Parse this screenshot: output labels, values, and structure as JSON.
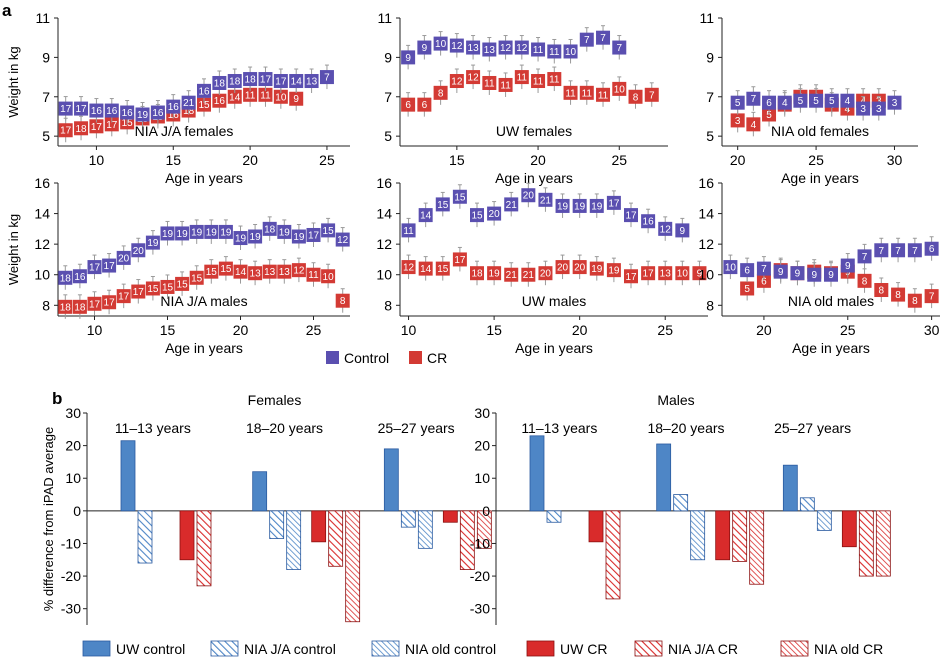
{
  "panel_letters": {
    "a": "a",
    "b": "b"
  },
  "colors": {
    "control": "#5a4fb0",
    "cr": "#d33a34",
    "uw_control_bar": "#4e86c6",
    "uw_cr_bar": "#d92b2b",
    "hatch_control": "#4e86c6",
    "hatch_cr": "#d92b2b"
  },
  "legend_a": {
    "control": "Control",
    "cr": "CR"
  },
  "chart_data": [
    {
      "type": "scatter",
      "id": "nia_ja_females",
      "title": "NIA J/A females",
      "xlabel": "Age in years",
      "ylabel": "Weight in kg",
      "xlim": [
        7.5,
        26.5
      ],
      "ylim": [
        4.5,
        11
      ],
      "xticks": [
        10,
        15,
        20,
        25
      ],
      "yticks": [
        5,
        7,
        9,
        11
      ],
      "series": [
        {
          "name": "Control",
          "x": [
            8,
            9,
            10,
            11,
            12,
            13,
            14,
            15,
            16,
            17,
            18,
            19,
            20,
            21,
            22,
            23,
            24,
            25
          ],
          "y": [
            6.4,
            6.4,
            6.3,
            6.3,
            6.2,
            6.1,
            6.2,
            6.5,
            6.7,
            7.3,
            7.7,
            7.8,
            7.9,
            7.9,
            7.8,
            7.8,
            7.8,
            8.0
          ],
          "labels": [
            "17",
            "17",
            "16",
            "16",
            "16",
            "19",
            "16",
            "16",
            "21",
            "16",
            "18",
            "18",
            "18",
            "17",
            "17",
            "14",
            "13",
            "7"
          ]
        },
        {
          "name": "CR",
          "x": [
            8,
            9,
            10,
            11,
            12,
            13,
            14,
            15,
            16,
            17,
            18,
            19,
            20,
            21,
            22,
            23
          ],
          "y": [
            5.3,
            5.4,
            5.5,
            5.6,
            5.7,
            5.9,
            6.0,
            6.1,
            6.3,
            6.6,
            6.8,
            7.0,
            7.1,
            7.1,
            7.0,
            6.9
          ],
          "labels": [
            "17",
            "18",
            "17",
            "17",
            "15",
            "13",
            "15",
            "16",
            "18",
            "15",
            "16",
            "14",
            "11",
            "11",
            "10",
            "9"
          ]
        }
      ]
    },
    {
      "type": "scatter",
      "id": "uw_females",
      "title": "UW females",
      "xlabel": "Age in years",
      "ylabel": "",
      "xlim": [
        11.5,
        28
      ],
      "ylim": [
        4.5,
        11
      ],
      "xticks": [
        15,
        20,
        25
      ],
      "yticks": [
        5,
        7,
        9,
        11
      ],
      "series": [
        {
          "name": "Control",
          "x": [
            12,
            13,
            14,
            15,
            16,
            17,
            18,
            19,
            20,
            21,
            22,
            23,
            24,
            25
          ],
          "y": [
            9.0,
            9.5,
            9.7,
            9.6,
            9.5,
            9.4,
            9.5,
            9.5,
            9.4,
            9.3,
            9.3,
            9.9,
            10.0,
            9.5
          ],
          "labels": [
            "9",
            "9",
            "10",
            "12",
            "13",
            "13",
            "12",
            "12",
            "11",
            "11",
            "10",
            "7",
            "7",
            "7"
          ]
        },
        {
          "name": "CR",
          "x": [
            12,
            13,
            14,
            15,
            16,
            17,
            18,
            19,
            20,
            21,
            22,
            23,
            24,
            25,
            26,
            27
          ],
          "y": [
            6.6,
            6.6,
            7.2,
            7.8,
            8.0,
            7.7,
            7.6,
            8.0,
            7.8,
            7.9,
            7.2,
            7.2,
            7.1,
            7.4,
            7.0,
            7.1
          ],
          "labels": [
            "6",
            "6",
            "8",
            "12",
            "12",
            "11",
            "11",
            "11",
            "11",
            "11",
            "11",
            "11",
            "11",
            "10",
            "8",
            "7"
          ]
        }
      ]
    },
    {
      "type": "scatter",
      "id": "nia_old_females",
      "title": "NIA old females",
      "xlabel": "Age in years",
      "ylabel": "",
      "xlim": [
        19,
        31.5
      ],
      "ylim": [
        4.5,
        11
      ],
      "xticks": [
        20,
        25,
        30
      ],
      "yticks": [
        5,
        7,
        9,
        11
      ],
      "series": [
        {
          "name": "Control",
          "x": [
            20,
            21,
            22,
            23,
            24,
            25,
            26,
            27,
            28,
            29,
            30
          ],
          "y": [
            6.7,
            6.9,
            6.7,
            6.7,
            6.8,
            6.8,
            6.8,
            6.8,
            6.4,
            6.4,
            6.7
          ],
          "labels": [
            "5",
            "7",
            "6",
            "4",
            "5",
            "5",
            "5",
            "4",
            "3",
            "3",
            "3"
          ]
        },
        {
          "name": "CR",
          "x": [
            20,
            21,
            22,
            23,
            24,
            25,
            26,
            27,
            28,
            29
          ],
          "y": [
            5.8,
            5.6,
            6.1,
            6.6,
            7.0,
            7.0,
            6.6,
            6.4,
            6.8,
            6.8
          ],
          "labels": [
            "3",
            "4",
            "5",
            "5",
            "4",
            "4",
            "4",
            "4",
            "4",
            "3"
          ]
        }
      ]
    },
    {
      "type": "scatter",
      "id": "nia_ja_males",
      "title": "NIA J/A males",
      "xlabel": "Age in years",
      "ylabel": "Weight in kg",
      "xlim": [
        7.5,
        27.5
      ],
      "ylim": [
        7.3,
        16
      ],
      "xticks": [
        10,
        15,
        20,
        25
      ],
      "yticks": [
        8,
        10,
        12,
        14,
        16
      ],
      "series": [
        {
          "name": "Control",
          "x": [
            8,
            9,
            10,
            11,
            12,
            13,
            14,
            15,
            16,
            17,
            18,
            19,
            20,
            21,
            22,
            23,
            24,
            25,
            26,
            27
          ],
          "y": [
            9.8,
            9.9,
            10.5,
            10.6,
            11.1,
            11.6,
            12.1,
            12.7,
            12.7,
            12.8,
            12.8,
            12.8,
            12.4,
            12.5,
            13.0,
            12.8,
            12.5,
            12.6,
            12.9,
            12.3
          ],
          "labels": [
            "18",
            "16",
            "17",
            "17",
            "20",
            "20",
            "19",
            "19",
            "19",
            "19",
            "19",
            "19",
            "19",
            "19",
            "18",
            "19",
            "19",
            "17",
            "15",
            "12"
          ]
        },
        {
          "name": "CR",
          "x": [
            8,
            9,
            10,
            11,
            12,
            13,
            14,
            15,
            16,
            17,
            18,
            19,
            20,
            21,
            22,
            23,
            24,
            25,
            26,
            27
          ],
          "y": [
            7.9,
            7.9,
            8.1,
            8.2,
            8.6,
            8.9,
            9.1,
            9.2,
            9.4,
            9.8,
            10.2,
            10.4,
            10.2,
            10.1,
            10.2,
            10.2,
            10.3,
            10.0,
            9.9,
            8.3
          ],
          "labels": [
            "18",
            "18",
            "17",
            "17",
            "17",
            "17",
            "15",
            "15",
            "15",
            "15",
            "15",
            "15",
            "14",
            "13",
            "13",
            "13",
            "12",
            "11",
            "10",
            "8"
          ]
        }
      ]
    },
    {
      "type": "scatter",
      "id": "uw_males",
      "title": "UW males",
      "xlabel": "Age in years",
      "ylabel": "",
      "xlim": [
        9.5,
        27.5
      ],
      "ylim": [
        7.3,
        16
      ],
      "xticks": [
        10,
        15,
        20,
        25
      ],
      "yticks": [
        8,
        10,
        12,
        14,
        16
      ],
      "series": [
        {
          "name": "Control",
          "x": [
            10,
            11,
            12,
            13,
            14,
            15,
            16,
            17,
            18,
            19,
            20,
            21,
            22,
            23,
            24,
            25,
            26
          ],
          "y": [
            12.9,
            13.9,
            14.6,
            15.1,
            13.9,
            14.0,
            14.6,
            15.2,
            14.9,
            14.5,
            14.5,
            14.5,
            14.7,
            13.9,
            13.5,
            13.0,
            12.9
          ],
          "labels": [
            "11",
            "14",
            "15",
            "15",
            "15",
            "20",
            "21",
            "20",
            "21",
            "19",
            "19",
            "19",
            "17",
            "17",
            "16",
            "12",
            "9"
          ]
        },
        {
          "name": "CR",
          "x": [
            10,
            11,
            12,
            13,
            14,
            15,
            16,
            17,
            18,
            19,
            20,
            21,
            22,
            23,
            24,
            25,
            26,
            27
          ],
          "y": [
            10.5,
            10.4,
            10.4,
            11.0,
            10.1,
            10.1,
            10.0,
            10.0,
            10.1,
            10.5,
            10.5,
            10.4,
            10.3,
            9.9,
            10.1,
            10.1,
            10.1,
            10.1
          ],
          "labels": [
            "12",
            "14",
            "15",
            "17",
            "18",
            "19",
            "21",
            "21",
            "20",
            "20",
            "20",
            "19",
            "19",
            "17",
            "17",
            "13",
            "10",
            "9"
          ]
        }
      ]
    },
    {
      "type": "scatter",
      "id": "nia_old_males",
      "title": "NIA old males",
      "xlabel": "Age in years",
      "ylabel": "",
      "xlim": [
        17.5,
        30.5
      ],
      "ylim": [
        7.3,
        16
      ],
      "xticks": [
        20,
        25,
        30
      ],
      "yticks": [
        8,
        10,
        12,
        14,
        16
      ],
      "series": [
        {
          "name": "Control",
          "x": [
            18,
            19,
            20,
            21,
            22,
            23,
            24,
            25,
            26,
            27,
            28,
            29,
            30
          ],
          "y": [
            10.5,
            10.3,
            10.4,
            10.2,
            10.1,
            10.0,
            10.0,
            10.6,
            11.2,
            11.6,
            11.6,
            11.6,
            11.7
          ],
          "labels": [
            "10",
            "6",
            "7",
            "9",
            "9",
            "9",
            "9",
            "9",
            "7",
            "7",
            "7",
            "7",
            "6"
          ]
        },
        {
          "name": "CR",
          "x": [
            19,
            20,
            21,
            22,
            23,
            24,
            25,
            26,
            27,
            28,
            29,
            30
          ],
          "y": [
            9.1,
            9.6,
            10.3,
            10.1,
            10.2,
            10.1,
            10.2,
            9.6,
            9.0,
            8.7,
            8.3,
            8.6
          ],
          "labels": [
            "5",
            "6",
            "8",
            "8",
            "9",
            "9",
            "9",
            "8",
            "8",
            "8",
            "8",
            "7"
          ]
        }
      ]
    },
    {
      "type": "bar",
      "id": "females_diff",
      "title": "Females",
      "ylabel": "% difference from iPAD average",
      "ylim": [
        -35,
        30
      ],
      "yticks": [
        30,
        20,
        10,
        0,
        -10,
        -20,
        -30
      ],
      "groups": [
        "11–13 years",
        "18–20 years",
        "25–27 years"
      ],
      "series": [
        {
          "name": "UW control",
          "values": [
            21.5,
            12,
            19
          ]
        },
        {
          "name": "NIA J/A control",
          "values": [
            -16,
            -8.5,
            -5
          ]
        },
        {
          "name": "NIA old control",
          "values": [
            null,
            -18,
            -11.5
          ]
        },
        {
          "name": "UW CR",
          "values": [
            -15,
            -9.5,
            -3.5
          ]
        },
        {
          "name": "NIA J/A CR",
          "values": [
            -23,
            -17,
            -18
          ]
        },
        {
          "name": "NIA old CR",
          "values": [
            null,
            -34,
            -11.5
          ]
        }
      ]
    },
    {
      "type": "bar",
      "id": "males_diff",
      "title": "Males",
      "ylabel": "",
      "ylim": [
        -35,
        30
      ],
      "yticks": [
        30,
        20,
        10,
        0,
        -10,
        -20,
        -30
      ],
      "groups": [
        "11–13 years",
        "18–20 years",
        "25–27 years"
      ],
      "series": [
        {
          "name": "UW control",
          "values": [
            23,
            20.5,
            14
          ]
        },
        {
          "name": "NIA J/A control",
          "values": [
            -3.5,
            5,
            4
          ]
        },
        {
          "name": "NIA old control",
          "values": [
            null,
            -15,
            -6
          ]
        },
        {
          "name": "UW CR",
          "values": [
            -9.5,
            -15,
            -11
          ]
        },
        {
          "name": "NIA J/A CR",
          "values": [
            -27,
            -15.5,
            -20
          ]
        },
        {
          "name": "NIA old CR",
          "values": [
            null,
            -22.5,
            -20
          ]
        }
      ]
    }
  ],
  "legend_b": [
    {
      "name": "UW control",
      "style": "solid-control"
    },
    {
      "name": "NIA J/A control",
      "style": "hatch-control"
    },
    {
      "name": "NIA old control",
      "style": "hatch2-control"
    },
    {
      "name": "UW CR",
      "style": "solid-cr"
    },
    {
      "name": "NIA J/A CR",
      "style": "hatch-cr"
    },
    {
      "name": "NIA old CR",
      "style": "hatch2-cr"
    }
  ]
}
